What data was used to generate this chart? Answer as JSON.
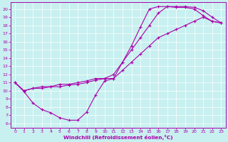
{
  "xlabel": "Windchill (Refroidissement éolien,°C)",
  "bg_color": "#c8f0f0",
  "line_color": "#aa00aa",
  "xlim": [
    -0.5,
    23.5
  ],
  "ylim": [
    5.5,
    20.8
  ],
  "xticks": [
    0,
    1,
    2,
    3,
    4,
    5,
    6,
    7,
    8,
    9,
    10,
    11,
    12,
    13,
    14,
    15,
    16,
    17,
    18,
    19,
    20,
    21,
    22,
    23
  ],
  "yticks": [
    6,
    7,
    8,
    9,
    10,
    11,
    12,
    13,
    14,
    15,
    16,
    17,
    18,
    19,
    20
  ],
  "line1_x": [
    0,
    1,
    2,
    3,
    4,
    5,
    6,
    7,
    8,
    9,
    10,
    11,
    12,
    13,
    14,
    15,
    16,
    17,
    18,
    19,
    20,
    21,
    22,
    23
  ],
  "line1_y": [
    11.0,
    9.9,
    8.5,
    7.7,
    7.3,
    6.7,
    6.4,
    6.4,
    7.4,
    9.5,
    11.2,
    11.5,
    13.5,
    15.5,
    17.8,
    20.0,
    20.3,
    20.3,
    20.2,
    20.2,
    20.0,
    19.2,
    18.5,
    18.3
  ],
  "line2_x": [
    0,
    1,
    2,
    3,
    4,
    5,
    6,
    7,
    8,
    9,
    10,
    11,
    12,
    13,
    14,
    15,
    16,
    17,
    18,
    19,
    20,
    21,
    22,
    23
  ],
  "line2_y": [
    11.0,
    10.0,
    10.3,
    10.3,
    10.5,
    10.5,
    10.7,
    10.8,
    11.0,
    11.3,
    11.5,
    11.5,
    12.5,
    13.5,
    14.5,
    15.5,
    16.5,
    17.0,
    17.5,
    18.0,
    18.5,
    19.0,
    18.5,
    18.3
  ],
  "line3_x": [
    0,
    1,
    2,
    3,
    4,
    5,
    6,
    7,
    8,
    9,
    10,
    11,
    12,
    13,
    14,
    15,
    16,
    17,
    18,
    19,
    20,
    21,
    22,
    23
  ],
  "line3_y": [
    11.0,
    10.0,
    10.3,
    10.5,
    10.5,
    10.8,
    10.8,
    11.0,
    11.2,
    11.5,
    11.5,
    12.0,
    13.5,
    15.0,
    16.5,
    18.0,
    19.5,
    20.3,
    20.3,
    20.3,
    20.2,
    19.8,
    19.0,
    18.3
  ]
}
